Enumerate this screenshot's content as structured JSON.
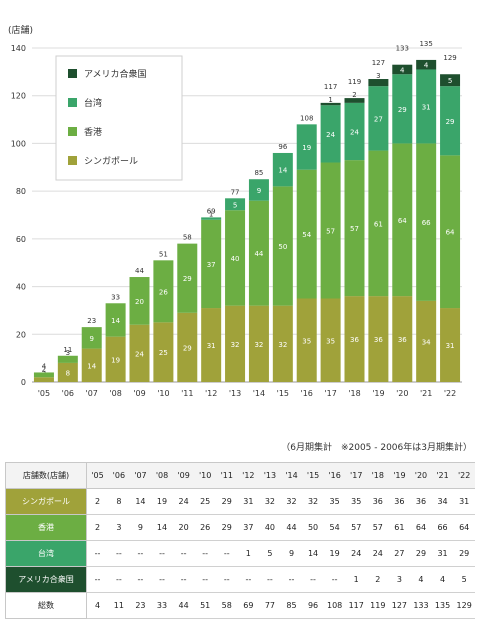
{
  "chart_data": {
    "type": "bar",
    "stacked": true,
    "ylabel": "(店舗)",
    "ylim": [
      0,
      140
    ],
    "yticks": [
      0,
      20,
      40,
      60,
      80,
      100,
      120,
      140
    ],
    "grid": true,
    "legend_position": "top-left",
    "categories": [
      "'05",
      "'06",
      "'07",
      "'08",
      "'09",
      "'10",
      "'11",
      "'12",
      "'13",
      "'14",
      "'15",
      "'16",
      "'17",
      "'18",
      "'19",
      "'20",
      "'21",
      "'22"
    ],
    "series": [
      {
        "name": "シンガポール",
        "color": "#a0a23a",
        "values": [
          2,
          8,
          14,
          19,
          24,
          25,
          29,
          31,
          32,
          32,
          32,
          35,
          35,
          36,
          36,
          36,
          34,
          31
        ]
      },
      {
        "name": "香港",
        "color": "#6cae43",
        "values": [
          2,
          3,
          9,
          14,
          20,
          26,
          29,
          37,
          40,
          44,
          50,
          54,
          57,
          57,
          61,
          64,
          66,
          64
        ]
      },
      {
        "name": "台湾",
        "color": "#3aa56a",
        "values": [
          null,
          null,
          null,
          null,
          null,
          null,
          null,
          1,
          5,
          9,
          14,
          19,
          24,
          24,
          27,
          29,
          31,
          29
        ]
      },
      {
        "name": "アメリカ合衆国",
        "color": "#1e4f2e",
        "values": [
          null,
          null,
          null,
          null,
          null,
          null,
          null,
          null,
          null,
          null,
          null,
          null,
          1,
          2,
          3,
          4,
          4,
          5
        ]
      }
    ],
    "totals": [
      4,
      11,
      23,
      33,
      44,
      51,
      58,
      69,
      77,
      85,
      96,
      108,
      117,
      119,
      127,
      133,
      135,
      129
    ],
    "legend_order": [
      "アメリカ合衆国",
      "台湾",
      "香港",
      "シンガポール"
    ]
  },
  "note": "（6月期集計　※2005 - 2006年は3月期集計）",
  "table": {
    "header_label": "店舗数(店舗)",
    "years": [
      "'05",
      "'06",
      "'07",
      "'08",
      "'09",
      "'10",
      "'11",
      "'12",
      "'13",
      "'14",
      "'15",
      "'16",
      "'17",
      "'18",
      "'19",
      "'20",
      "'21",
      "'22"
    ],
    "rows": [
      {
        "label": "シンガポール",
        "cls": "lab-singapore",
        "cells": [
          "2",
          "8",
          "14",
          "19",
          "24",
          "25",
          "29",
          "31",
          "32",
          "32",
          "32",
          "35",
          "35",
          "36",
          "36",
          "36",
          "34",
          "31"
        ]
      },
      {
        "label": "香港",
        "cls": "lab-hongkong",
        "cells": [
          "2",
          "3",
          "9",
          "14",
          "20",
          "26",
          "29",
          "37",
          "40",
          "44",
          "50",
          "54",
          "57",
          "57",
          "61",
          "64",
          "66",
          "64"
        ]
      },
      {
        "label": "台湾",
        "cls": "lab-taiwan",
        "cells": [
          "--",
          "--",
          "--",
          "--",
          "--",
          "--",
          "--",
          "1",
          "5",
          "9",
          "14",
          "19",
          "24",
          "24",
          "27",
          "29",
          "31",
          "29"
        ]
      },
      {
        "label": "アメリカ合衆国",
        "cls": "lab-usa",
        "cells": [
          "--",
          "--",
          "--",
          "--",
          "--",
          "--",
          "--",
          "--",
          "--",
          "--",
          "--",
          "--",
          "1",
          "2",
          "3",
          "4",
          "4",
          "5"
        ]
      },
      {
        "label": "総数",
        "cls": "lab-total",
        "cells": [
          "4",
          "11",
          "23",
          "33",
          "44",
          "51",
          "58",
          "69",
          "77",
          "85",
          "96",
          "108",
          "117",
          "119",
          "127",
          "133",
          "135",
          "129"
        ]
      }
    ]
  }
}
